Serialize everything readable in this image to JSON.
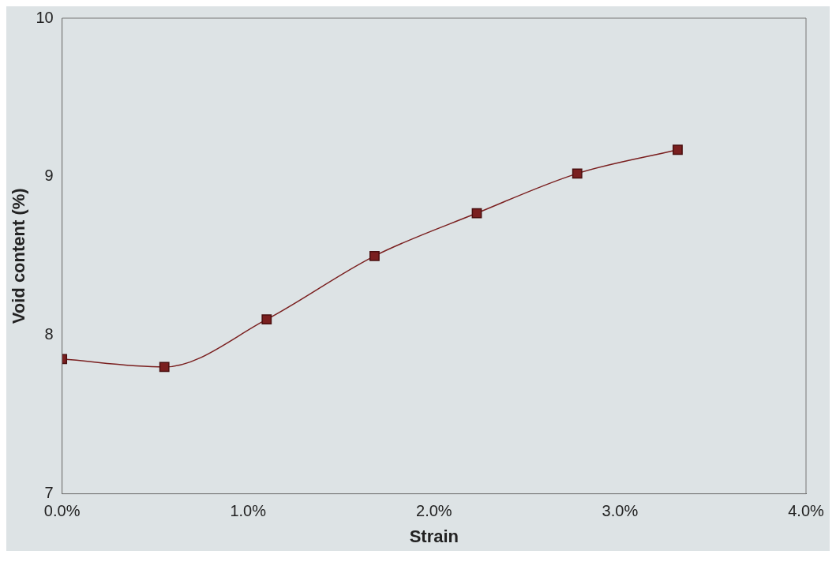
{
  "chart_data": {
    "type": "line",
    "xlabel": "Strain",
    "ylabel": "Void content (%)",
    "x": [
      0,
      0.0055,
      0.011,
      0.0168,
      0.0223,
      0.0277,
      0.0331
    ],
    "series": [
      {
        "color": "#7a1f1f",
        "values": [
          7.85,
          7.8,
          8.1,
          8.5,
          8.77,
          9.02,
          9.17
        ]
      }
    ],
    "xlim": [
      0,
      0.04
    ],
    "xticks": [
      {
        "value": 0,
        "label": "0.0%"
      },
      {
        "value": 0.01,
        "label": "1.0%"
      },
      {
        "value": 0.02,
        "label": "2.0%"
      },
      {
        "value": 0.03,
        "label": "3.0%"
      },
      {
        "value": 0.04,
        "label": "4.0%"
      }
    ],
    "ylim": [
      7,
      10
    ],
    "yticks": [
      7,
      8,
      9,
      10
    ],
    "marker": "square",
    "line_style": "solid"
  }
}
